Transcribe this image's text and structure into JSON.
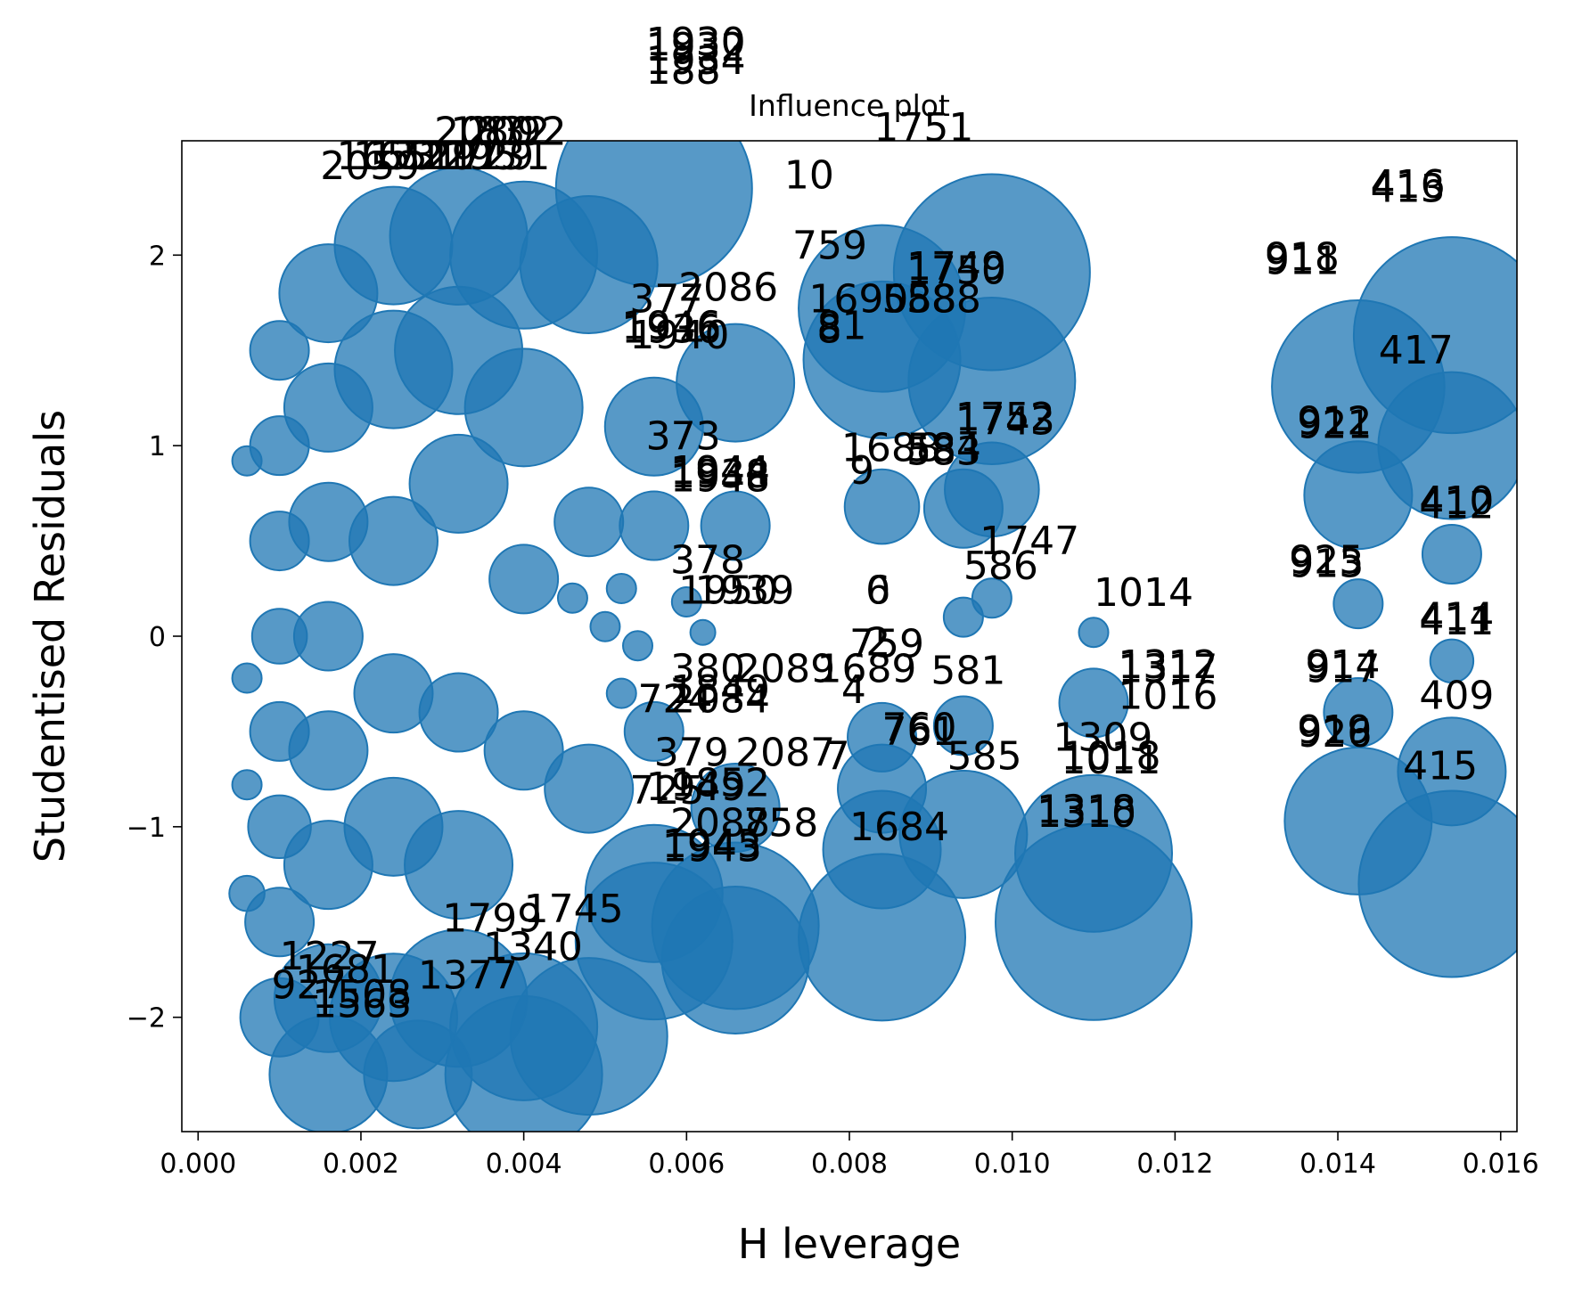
{
  "chart_data": {
    "type": "scatter",
    "title": "Influence plot",
    "xlabel": "H leverage",
    "ylabel": "Studentised Residuals",
    "xlim": [
      -0.0002,
      0.0162
    ],
    "ylim": [
      -2.6,
      2.6
    ],
    "xticks": [
      0.0,
      0.002,
      0.004,
      0.006,
      0.008,
      0.01,
      0.012,
      0.014,
      0.016
    ],
    "xtick_labels": [
      "0.000",
      "0.002",
      "0.004",
      "0.006",
      "0.008",
      "0.010",
      "0.012",
      "0.014",
      "0.016"
    ],
    "yticks": [
      -2,
      -1,
      0,
      1,
      2
    ],
    "ytick_labels": [
      "−2",
      "−1",
      "0",
      "1",
      "2"
    ],
    "grid": false,
    "marker_color": "#1f77b4",
    "points": [
      {
        "x": 0.0154,
        "y": 1.58,
        "size": 1.0
      },
      {
        "x": 0.0154,
        "y": 1.0,
        "size": 0.75
      },
      {
        "x": 0.0154,
        "y": 0.43,
        "size": 0.3
      },
      {
        "x": 0.0154,
        "y": -0.13,
        "size": 0.22
      },
      {
        "x": 0.0154,
        "y": -0.71,
        "size": 0.55
      },
      {
        "x": 0.0154,
        "y": -1.3,
        "size": 0.95
      },
      {
        "x": 0.01425,
        "y": 1.31,
        "size": 0.88
      },
      {
        "x": 0.01425,
        "y": 0.74,
        "size": 0.55
      },
      {
        "x": 0.01425,
        "y": 0.17,
        "size": 0.25
      },
      {
        "x": 0.01425,
        "y": -0.4,
        "size": 0.35
      },
      {
        "x": 0.01425,
        "y": -0.97,
        "size": 0.75
      },
      {
        "x": 0.00975,
        "y": 1.91,
        "size": 1.0
      },
      {
        "x": 0.00975,
        "y": 1.34,
        "size": 0.85
      },
      {
        "x": 0.00975,
        "y": 0.77,
        "size": 0.48
      },
      {
        "x": 0.00975,
        "y": 0.2,
        "size": 0.2
      },
      {
        "x": 0.0094,
        "y": 0.67,
        "size": 0.4
      },
      {
        "x": 0.0094,
        "y": 0.1,
        "size": 0.2
      },
      {
        "x": 0.0094,
        "y": -0.47,
        "size": 0.3
      },
      {
        "x": 0.0094,
        "y": -1.04,
        "size": 0.65
      },
      {
        "x": 0.0084,
        "y": 1.72,
        "size": 0.85
      },
      {
        "x": 0.0084,
        "y": 1.45,
        "size": 0.8
      },
      {
        "x": 0.0084,
        "y": 0.68,
        "size": 0.38
      },
      {
        "x": 0.0084,
        "y": -0.53,
        "size": 0.35
      },
      {
        "x": 0.0084,
        "y": -0.8,
        "size": 0.45
      },
      {
        "x": 0.0084,
        "y": -1.12,
        "size": 0.6
      },
      {
        "x": 0.0084,
        "y": -1.58,
        "size": 0.85
      },
      {
        "x": 0.011,
        "y": -0.35,
        "size": 0.35
      },
      {
        "x": 0.011,
        "y": -1.14,
        "size": 0.8
      },
      {
        "x": 0.011,
        "y": -1.5,
        "size": 1.0
      },
      {
        "x": 0.011,
        "y": 0.02,
        "size": 0.15
      },
      {
        "x": 0.0066,
        "y": 1.33,
        "size": 0.6
      },
      {
        "x": 0.0066,
        "y": 0.58,
        "size": 0.35
      },
      {
        "x": 0.0066,
        "y": -0.9,
        "size": 0.45
      },
      {
        "x": 0.0066,
        "y": -1.52,
        "size": 0.85
      },
      {
        "x": 0.0066,
        "y": -1.7,
        "size": 0.75
      },
      {
        "x": 0.0056,
        "y": 2.35,
        "size": 1.0
      },
      {
        "x": 0.0056,
        "y": 1.1,
        "size": 0.5
      },
      {
        "x": 0.0056,
        "y": 0.58,
        "size": 0.35
      },
      {
        "x": 0.0056,
        "y": -0.5,
        "size": 0.3
      },
      {
        "x": 0.0056,
        "y": -1.35,
        "size": 0.7
      },
      {
        "x": 0.0056,
        "y": -1.6,
        "size": 0.8
      },
      {
        "x": 0.0048,
        "y": 1.95,
        "size": 0.7
      },
      {
        "x": 0.0048,
        "y": 0.6,
        "size": 0.35
      },
      {
        "x": 0.0048,
        "y": -0.8,
        "size": 0.45
      },
      {
        "x": 0.0048,
        "y": -2.1,
        "size": 0.8
      },
      {
        "x": 0.004,
        "y": 2.0,
        "size": 0.75
      },
      {
        "x": 0.004,
        "y": 1.2,
        "size": 0.6
      },
      {
        "x": 0.004,
        "y": 0.3,
        "size": 0.35
      },
      {
        "x": 0.004,
        "y": -0.6,
        "size": 0.4
      },
      {
        "x": 0.004,
        "y": -2.05,
        "size": 0.75
      },
      {
        "x": 0.004,
        "y": -2.3,
        "size": 0.8
      },
      {
        "x": 0.0032,
        "y": 2.1,
        "size": 0.7
      },
      {
        "x": 0.0032,
        "y": 1.5,
        "size": 0.65
      },
      {
        "x": 0.0032,
        "y": 0.8,
        "size": 0.5
      },
      {
        "x": 0.0032,
        "y": -0.4,
        "size": 0.4
      },
      {
        "x": 0.0032,
        "y": -1.2,
        "size": 0.55
      },
      {
        "x": 0.0032,
        "y": -1.9,
        "size": 0.7
      },
      {
        "x": 0.0024,
        "y": 2.05,
        "size": 0.6
      },
      {
        "x": 0.0024,
        "y": 1.4,
        "size": 0.6
      },
      {
        "x": 0.0024,
        "y": 0.5,
        "size": 0.45
      },
      {
        "x": 0.0024,
        "y": -0.3,
        "size": 0.4
      },
      {
        "x": 0.0024,
        "y": -1.0,
        "size": 0.5
      },
      {
        "x": 0.0024,
        "y": -2.0,
        "size": 0.65
      },
      {
        "x": 0.0027,
        "y": -2.3,
        "size": 0.55
      },
      {
        "x": 0.0016,
        "y": 1.8,
        "size": 0.5
      },
      {
        "x": 0.0016,
        "y": 1.2,
        "size": 0.45
      },
      {
        "x": 0.0016,
        "y": 0.6,
        "size": 0.4
      },
      {
        "x": 0.0016,
        "y": 0.0,
        "size": 0.35
      },
      {
        "x": 0.0016,
        "y": -0.6,
        "size": 0.4
      },
      {
        "x": 0.0016,
        "y": -1.2,
        "size": 0.45
      },
      {
        "x": 0.0016,
        "y": -1.9,
        "size": 0.55
      },
      {
        "x": 0.0016,
        "y": -2.3,
        "size": 0.6
      },
      {
        "x": 0.001,
        "y": 1.5,
        "size": 0.3
      },
      {
        "x": 0.001,
        "y": 1.0,
        "size": 0.3
      },
      {
        "x": 0.001,
        "y": 0.5,
        "size": 0.3
      },
      {
        "x": 0.001,
        "y": 0.0,
        "size": 0.28
      },
      {
        "x": 0.001,
        "y": -0.5,
        "size": 0.3
      },
      {
        "x": 0.001,
        "y": -1.0,
        "size": 0.32
      },
      {
        "x": 0.001,
        "y": -1.5,
        "size": 0.35
      },
      {
        "x": 0.001,
        "y": -2.0,
        "size": 0.4
      },
      {
        "x": 0.0006,
        "y": 0.92,
        "size": 0.15
      },
      {
        "x": 0.0006,
        "y": -0.22,
        "size": 0.15
      },
      {
        "x": 0.0006,
        "y": -0.78,
        "size": 0.15
      },
      {
        "x": 0.0006,
        "y": -1.35,
        "size": 0.18
      },
      {
        "x": 0.0052,
        "y": 0.25,
        "size": 0.15
      },
      {
        "x": 0.0054,
        "y": -0.05,
        "size": 0.15
      },
      {
        "x": 0.006,
        "y": 0.18,
        "size": 0.15
      },
      {
        "x": 0.0062,
        "y": 0.02,
        "size": 0.12
      },
      {
        "x": 0.0052,
        "y": -0.3,
        "size": 0.15
      },
      {
        "x": 0.005,
        "y": 0.05,
        "size": 0.15
      },
      {
        "x": 0.0046,
        "y": 0.2,
        "size": 0.15
      }
    ],
    "labels": [
      {
        "x": 0.0055,
        "y": 3.05,
        "text": "1930"
      },
      {
        "x": 0.0055,
        "y": 3.02,
        "text": "1932"
      },
      {
        "x": 0.0055,
        "y": 2.95,
        "text": "1934"
      },
      {
        "x": 0.0055,
        "y": 2.9,
        "text": "188"
      },
      {
        "x": 0.0029,
        "y": 2.58,
        "text": "2080"
      },
      {
        "x": 0.0031,
        "y": 2.58,
        "text": "1832"
      },
      {
        "x": 0.0033,
        "y": 2.58,
        "text": "2092"
      },
      {
        "x": 0.0017,
        "y": 2.45,
        "text": "1653"
      },
      {
        "x": 0.0019,
        "y": 2.45,
        "text": "1651"
      },
      {
        "x": 0.0021,
        "y": 2.45,
        "text": "1721"
      },
      {
        "x": 0.0025,
        "y": 2.45,
        "text": "1291"
      },
      {
        "x": 0.0027,
        "y": 2.45,
        "text": "1295"
      },
      {
        "x": 0.0029,
        "y": 2.45,
        "text": "1729"
      },
      {
        "x": 0.0031,
        "y": 2.45,
        "text": "1731"
      },
      {
        "x": 0.0015,
        "y": 2.4,
        "text": "2059"
      },
      {
        "x": 0.0083,
        "y": 2.6,
        "text": "1751"
      },
      {
        "x": 0.0072,
        "y": 2.35,
        "text": "10"
      },
      {
        "x": 0.0144,
        "y": 2.3,
        "text": "416"
      },
      {
        "x": 0.0144,
        "y": 2.28,
        "text": "413"
      },
      {
        "x": 0.0131,
        "y": 1.92,
        "text": "918"
      },
      {
        "x": 0.0131,
        "y": 1.9,
        "text": "911"
      },
      {
        "x": 0.0073,
        "y": 1.98,
        "text": "759"
      },
      {
        "x": 0.0087,
        "y": 1.87,
        "text": "1749"
      },
      {
        "x": 0.0087,
        "y": 1.85,
        "text": "1750"
      },
      {
        "x": 0.0059,
        "y": 1.76,
        "text": "2086"
      },
      {
        "x": 0.0053,
        "y": 1.7,
        "text": "377"
      },
      {
        "x": 0.0075,
        "y": 1.7,
        "text": "1690"
      },
      {
        "x": 0.0084,
        "y": 1.7,
        "text": "588"
      },
      {
        "x": 0.0087,
        "y": 1.7,
        "text": "588"
      },
      {
        "x": 0.0052,
        "y": 1.56,
        "text": "1946"
      },
      {
        "x": 0.0052,
        "y": 1.54,
        "text": "1936"
      },
      {
        "x": 0.0053,
        "y": 1.51,
        "text": "1940"
      },
      {
        "x": 0.0076,
        "y": 1.56,
        "text": "81"
      },
      {
        "x": 0.0076,
        "y": 1.54,
        "text": "8"
      },
      {
        "x": 0.0145,
        "y": 1.43,
        "text": "417"
      },
      {
        "x": 0.0093,
        "y": 1.08,
        "text": "1752"
      },
      {
        "x": 0.0093,
        "y": 1.06,
        "text": "1743"
      },
      {
        "x": 0.0135,
        "y": 1.06,
        "text": "912"
      },
      {
        "x": 0.0135,
        "y": 1.04,
        "text": "921"
      },
      {
        "x": 0.0055,
        "y": 0.98,
        "text": "373"
      },
      {
        "x": 0.0079,
        "y": 0.92,
        "text": "1688"
      },
      {
        "x": 0.0087,
        "y": 0.92,
        "text": "584"
      },
      {
        "x": 0.0087,
        "y": 0.9,
        "text": "583"
      },
      {
        "x": 0.0058,
        "y": 0.8,
        "text": "1944"
      },
      {
        "x": 0.0058,
        "y": 0.78,
        "text": "1938"
      },
      {
        "x": 0.0058,
        "y": 0.76,
        "text": "1948"
      },
      {
        "x": 0.008,
        "y": 0.8,
        "text": "9"
      },
      {
        "x": 0.015,
        "y": 0.64,
        "text": "410"
      },
      {
        "x": 0.015,
        "y": 0.62,
        "text": "412"
      },
      {
        "x": 0.0096,
        "y": 0.43,
        "text": "1747"
      },
      {
        "x": 0.0094,
        "y": 0.3,
        "text": "586"
      },
      {
        "x": 0.0134,
        "y": 0.33,
        "text": "925"
      },
      {
        "x": 0.0134,
        "y": 0.31,
        "text": "913"
      },
      {
        "x": 0.0058,
        "y": 0.33,
        "text": "378"
      },
      {
        "x": 0.0059,
        "y": 0.17,
        "text": "1950"
      },
      {
        "x": 0.0061,
        "y": 0.17,
        "text": "1939"
      },
      {
        "x": 0.0082,
        "y": 0.17,
        "text": "0"
      },
      {
        "x": 0.0082,
        "y": 0.17,
        "text": "6"
      },
      {
        "x": 0.011,
        "y": 0.16,
        "text": "1014"
      },
      {
        "x": 0.015,
        "y": 0.03,
        "text": "414"
      },
      {
        "x": 0.015,
        "y": 0.01,
        "text": "411"
      },
      {
        "x": 0.008,
        "y": -0.11,
        "text": "759"
      },
      {
        "x": 0.0082,
        "y": -0.1,
        "text": "2"
      },
      {
        "x": 0.0058,
        "y": -0.24,
        "text": "380"
      },
      {
        "x": 0.0066,
        "y": -0.24,
        "text": "2089"
      },
      {
        "x": 0.0076,
        "y": -0.24,
        "text": "1689"
      },
      {
        "x": 0.009,
        "y": -0.25,
        "text": "581"
      },
      {
        "x": 0.0113,
        "y": -0.22,
        "text": "1312"
      },
      {
        "x": 0.0113,
        "y": -0.24,
        "text": "1317"
      },
      {
        "x": 0.0136,
        "y": -0.22,
        "text": "914"
      },
      {
        "x": 0.0136,
        "y": -0.24,
        "text": "917"
      },
      {
        "x": 0.0079,
        "y": -0.35,
        "text": "4"
      },
      {
        "x": 0.0058,
        "y": -0.35,
        "text": "1849"
      },
      {
        "x": 0.0054,
        "y": -0.4,
        "text": "724"
      },
      {
        "x": 0.0058,
        "y": -0.4,
        "text": "2084"
      },
      {
        "x": 0.0113,
        "y": -0.38,
        "text": "1016"
      },
      {
        "x": 0.015,
        "y": -0.38,
        "text": "409"
      },
      {
        "x": 0.0084,
        "y": -0.55,
        "text": "760"
      },
      {
        "x": 0.0084,
        "y": -0.57,
        "text": "761"
      },
      {
        "x": 0.0105,
        "y": -0.6,
        "text": "1309"
      },
      {
        "x": 0.0135,
        "y": -0.58,
        "text": "926"
      },
      {
        "x": 0.0135,
        "y": -0.56,
        "text": "919"
      },
      {
        "x": 0.0056,
        "y": -0.68,
        "text": "379"
      },
      {
        "x": 0.0066,
        "y": -0.68,
        "text": "2087"
      },
      {
        "x": 0.0077,
        "y": -0.7,
        "text": "7"
      },
      {
        "x": 0.0092,
        "y": -0.7,
        "text": "585"
      },
      {
        "x": 0.0106,
        "y": -0.7,
        "text": "1018"
      },
      {
        "x": 0.0106,
        "y": -0.72,
        "text": "1011"
      },
      {
        "x": 0.0148,
        "y": -0.75,
        "text": "415"
      },
      {
        "x": 0.0058,
        "y": -0.84,
        "text": "1852"
      },
      {
        "x": 0.0053,
        "y": -0.88,
        "text": "725"
      },
      {
        "x": 0.0055,
        "y": -0.86,
        "text": "1949"
      },
      {
        "x": 0.0058,
        "y": -1.05,
        "text": "2088"
      },
      {
        "x": 0.0067,
        "y": -1.05,
        "text": "758"
      },
      {
        "x": 0.008,
        "y": -1.07,
        "text": "1684"
      },
      {
        "x": 0.0103,
        "y": -0.98,
        "text": "1318"
      },
      {
        "x": 0.0103,
        "y": -1.0,
        "text": "1310"
      },
      {
        "x": 0.0057,
        "y": -1.16,
        "text": "1945"
      },
      {
        "x": 0.0057,
        "y": -1.18,
        "text": "1943"
      },
      {
        "x": 0.004,
        "y": -1.5,
        "text": "1745"
      },
      {
        "x": 0.003,
        "y": -1.55,
        "text": "1799"
      },
      {
        "x": 0.0035,
        "y": -1.7,
        "text": "1340"
      },
      {
        "x": 0.0027,
        "y": -1.85,
        "text": "1377"
      },
      {
        "x": 0.001,
        "y": -1.75,
        "text": "1227"
      },
      {
        "x": 0.0012,
        "y": -1.82,
        "text": "1681"
      },
      {
        "x": 0.0009,
        "y": -1.9,
        "text": "927"
      },
      {
        "x": 0.0014,
        "y": -1.95,
        "text": "1508"
      },
      {
        "x": 0.0014,
        "y": -2.0,
        "text": "1563"
      }
    ]
  }
}
